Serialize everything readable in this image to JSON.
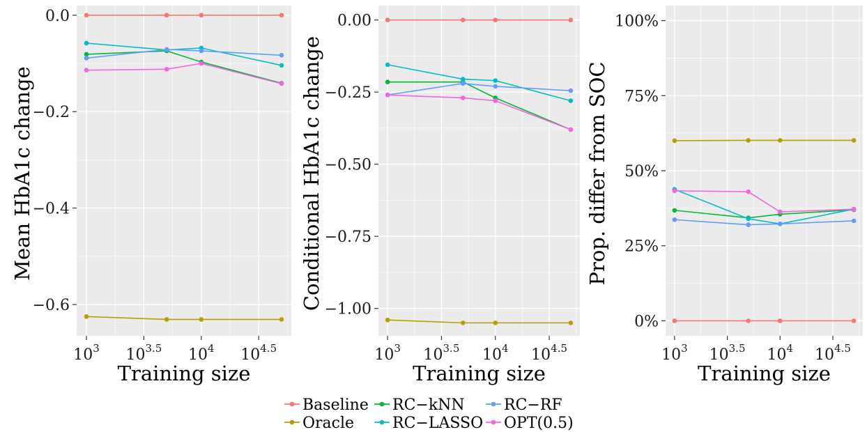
{
  "chart_data": [
    {
      "type": "line",
      "xlabel": "Training size",
      "ylabel": "Mean HbA1c change",
      "x_scale": "log10",
      "x": [
        1000,
        5000,
        10000,
        50000
      ],
      "xticks": [
        1000,
        3162,
        10000,
        31623
      ],
      "xtick_base": [
        "10",
        "10",
        "10",
        "10"
      ],
      "xtick_exp": [
        "3",
        "3.5",
        "4",
        "4.5"
      ],
      "ylim": [
        -0.665,
        0.02
      ],
      "yticks": [
        0.0,
        -0.2,
        -0.4,
        -0.6
      ],
      "ytick_labels": [
        "0.0",
        "−0.2",
        "−0.4",
        "−0.6"
      ],
      "series": [
        {
          "name": "Baseline",
          "values": [
            0.0,
            0.0,
            0.0,
            0.0
          ]
        },
        {
          "name": "Oracle",
          "values": [
            -0.625,
            -0.631,
            -0.631,
            -0.631
          ]
        },
        {
          "name": "RC−kNN",
          "values": [
            -0.081,
            -0.074,
            -0.097,
            -0.141
          ]
        },
        {
          "name": "RC−LASSO",
          "values": [
            -0.058,
            -0.072,
            -0.068,
            -0.104
          ]
        },
        {
          "name": "RC−RF",
          "values": [
            -0.089,
            -0.071,
            -0.074,
            -0.083
          ]
        },
        {
          "name": "OPT(0.5)",
          "values": [
            -0.114,
            -0.112,
            -0.1,
            -0.142
          ]
        }
      ],
      "grid": true
    },
    {
      "type": "line",
      "xlabel": "Training size",
      "ylabel": "Conditional HbA1c change",
      "x_scale": "log10",
      "x": [
        1000,
        5000,
        10000,
        50000
      ],
      "xticks": [
        1000,
        3162,
        10000,
        31623
      ],
      "xtick_base": [
        "10",
        "10",
        "10",
        "10"
      ],
      "xtick_exp": [
        "3",
        "3.5",
        "4",
        "4.5"
      ],
      "ylim": [
        -1.095,
        0.05
      ],
      "yticks": [
        0.0,
        -0.25,
        -0.5,
        -0.75,
        -1.0
      ],
      "ytick_labels": [
        "0.00",
        "−0.25",
        "−0.50",
        "−0.75",
        "−1.00"
      ],
      "series": [
        {
          "name": "Baseline",
          "values": [
            0.0,
            0.0,
            0.0,
            0.0
          ]
        },
        {
          "name": "Oracle",
          "values": [
            -1.04,
            -1.05,
            -1.05,
            -1.05
          ]
        },
        {
          "name": "RC−kNN",
          "values": [
            -0.215,
            -0.215,
            -0.27,
            -0.38
          ]
        },
        {
          "name": "RC−LASSO",
          "values": [
            -0.155,
            -0.205,
            -0.21,
            -0.28
          ]
        },
        {
          "name": "RC−RF",
          "values": [
            -0.26,
            -0.22,
            -0.23,
            -0.245
          ]
        },
        {
          "name": "OPT(0.5)",
          "values": [
            -0.26,
            -0.27,
            -0.28,
            -0.38
          ]
        }
      ],
      "grid": true
    },
    {
      "type": "line",
      "xlabel": "Training size",
      "ylabel": "Prop. differ from SOC",
      "x_scale": "log10",
      "x": [
        1000,
        5000,
        10000,
        50000
      ],
      "xticks": [
        1000,
        3162,
        10000,
        31623
      ],
      "xtick_base": [
        "10",
        "10",
        "10",
        "10"
      ],
      "xtick_exp": [
        "3",
        "3.5",
        "4",
        "4.5"
      ],
      "ylim": [
        -0.05,
        1.05
      ],
      "yticks": [
        0.0,
        0.25,
        0.5,
        0.75,
        1.0
      ],
      "ytick_labels": [
        "0%",
        "25%",
        "50%",
        "75%",
        "100%"
      ],
      "series": [
        {
          "name": "Baseline",
          "values": [
            0.0,
            0.0,
            0.0,
            0.0
          ]
        },
        {
          "name": "Oracle",
          "values": [
            0.6,
            0.601,
            0.601,
            0.601
          ]
        },
        {
          "name": "RC−kNN",
          "values": [
            0.368,
            0.343,
            0.355,
            0.37
          ]
        },
        {
          "name": "RC−LASSO",
          "values": [
            0.438,
            0.34,
            0.323,
            0.372
          ]
        },
        {
          "name": "RC−RF",
          "values": [
            0.337,
            0.32,
            0.323,
            0.333
          ]
        },
        {
          "name": "OPT(0.5)",
          "values": [
            0.433,
            0.43,
            0.363,
            0.372
          ]
        }
      ],
      "grid": true
    }
  ],
  "legend": {
    "placement": "bottom",
    "entries": [
      {
        "name": "Baseline",
        "color": "#F8766D"
      },
      {
        "name": "Oracle",
        "color": "#B79F00"
      },
      {
        "name": "RC−kNN",
        "color": "#00BA38"
      },
      {
        "name": "RC−LASSO",
        "color": "#00BFC4"
      },
      {
        "name": "RC−RF",
        "color": "#619CFF"
      },
      {
        "name": "OPT(0.5)",
        "color": "#F564E3"
      }
    ]
  },
  "series_colors": {
    "Baseline": "#F8766D",
    "Oracle": "#B79F00",
    "RC−kNN": "#00BA38",
    "RC−LASSO": "#00BFC4",
    "RC−RF": "#619CFF",
    "OPT(0.5)": "#F564E3"
  }
}
